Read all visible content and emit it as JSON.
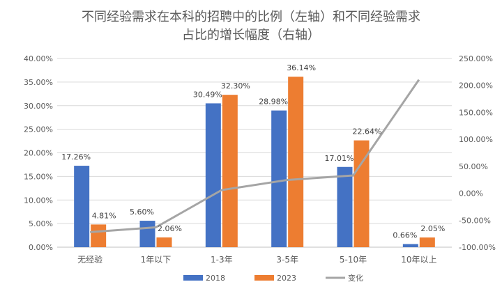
{
  "chart_data": {
    "type": "bar",
    "title_line1": "不同经验需求在本科的招聘中的比例（左轴）和不同经验需求",
    "title_line2": "占比的增长幅度（右轴）",
    "categories": [
      "无经验",
      "1年以下",
      "1-3年",
      "3-5年",
      "5-10年",
      "10年以上"
    ],
    "series": [
      {
        "name": "2018",
        "type": "bar",
        "axis": "left",
        "color": "#4472C4",
        "values": [
          17.26,
          5.6,
          30.49,
          28.98,
          17.01,
          0.66
        ],
        "labels": [
          "17.26%",
          "5.60%",
          "30.49%",
          "28.98%",
          "17.01%",
          "0.66%"
        ]
      },
      {
        "name": "2023",
        "type": "bar",
        "axis": "right-aligned-left",
        "color": "#ED7D31",
        "values": [
          4.81,
          2.06,
          32.3,
          36.14,
          22.64,
          2.05
        ],
        "labels": [
          "4.81%",
          "2.06%",
          "32.30%",
          "36.14%",
          "22.64%",
          "2.05%"
        ]
      },
      {
        "name": "变化",
        "type": "line",
        "axis": "right",
        "color": "#A5A5A5",
        "values": [
          -72.1,
          -63.2,
          5.9,
          24.7,
          33.1,
          210.6
        ]
      }
    ],
    "y_left": {
      "range": [
        0,
        40
      ],
      "ticks": [
        "0.00%",
        "5.00%",
        "10.00%",
        "15.00%",
        "20.00%",
        "25.00%",
        "30.00%",
        "35.00%",
        "40.00%"
      ]
    },
    "y_right": {
      "range": [
        -100,
        250
      ],
      "ticks": [
        "-100.00%",
        "-50.00%",
        "0.00%",
        "50.00%",
        "100.00%",
        "150.00%",
        "200.00%",
        "250.00%"
      ]
    },
    "legend_position": "bottom",
    "grid": true
  }
}
